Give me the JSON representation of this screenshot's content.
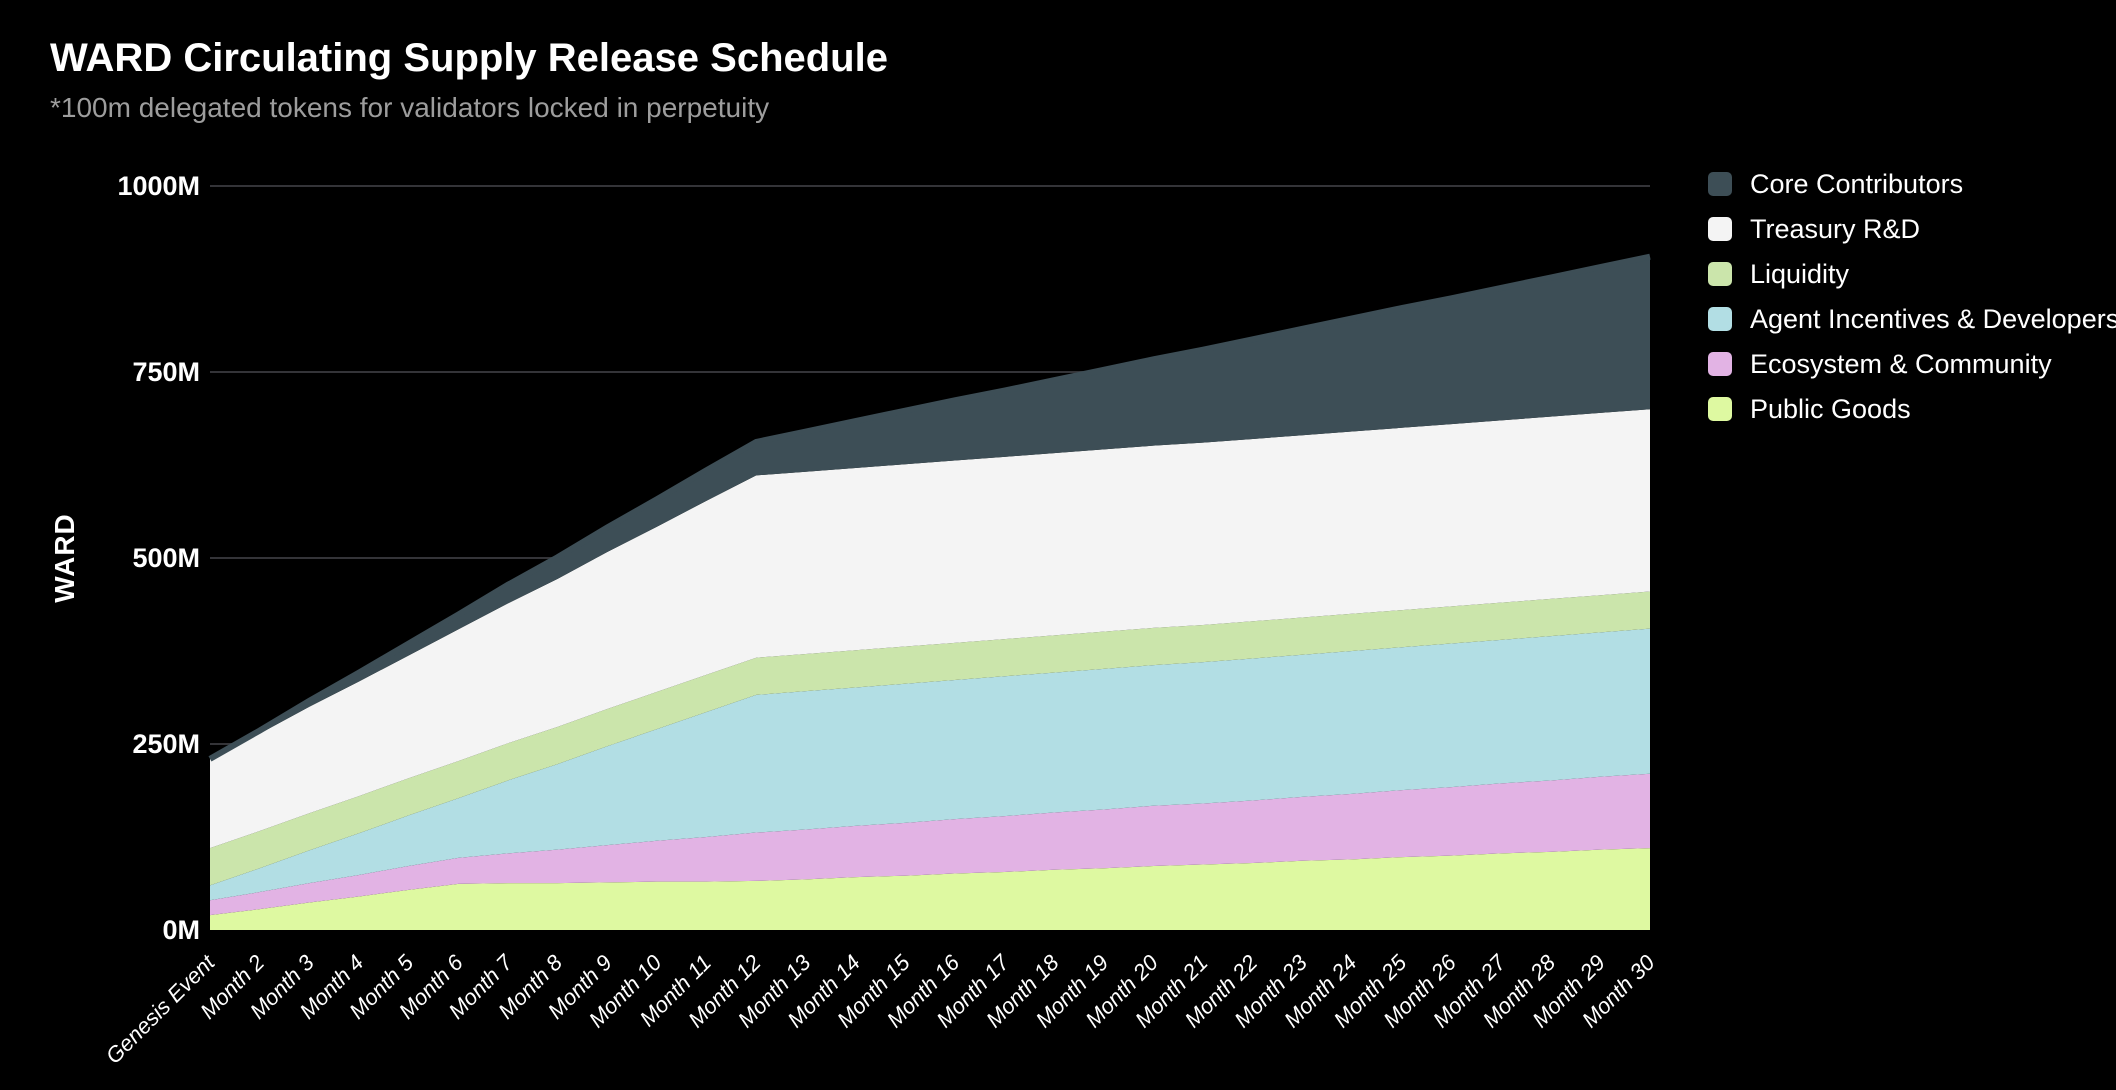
{
  "chart_data": {
    "type": "area",
    "stacked": true,
    "title": "WARD Circulating Supply Release Schedule",
    "subtitle": "*100m delegated tokens for validators locked in perpetuity",
    "ylabel": "WARD",
    "unit": "M",
    "ylim": [
      0,
      1000
    ],
    "background_color": "#000000",
    "grid_color": "#343438",
    "grid": "horizontal-only",
    "legend_position": "right",
    "y_ticks": [
      {
        "value": 0,
        "label": "0M"
      },
      {
        "value": 250,
        "label": "250M"
      },
      {
        "value": 500,
        "label": "500M"
      },
      {
        "value": 750,
        "label": "750M"
      },
      {
        "value": 1000,
        "label": "1000M"
      }
    ],
    "categories": [
      "Genesis Event",
      "Month 2",
      "Month 3",
      "Month 4",
      "Month 5",
      "Month 6",
      "Month 7",
      "Month 8",
      "Month 9",
      "Month 10",
      "Month 11",
      "Month 12",
      "Month 13",
      "Month 14",
      "Month 15",
      "Month 16",
      "Month 17",
      "Month 18",
      "Month 19",
      "Month 20",
      "Month 21",
      "Month 22",
      "Month 23",
      "Month 24",
      "Month 25",
      "Month 26",
      "Month 27",
      "Month 28",
      "Month 29",
      "Month 30"
    ],
    "series": [
      {
        "name": "Public Goods",
        "color": "#def9a1",
        "values": [
          20,
          28,
          37,
          45,
          54,
          62,
          63,
          63,
          64,
          65,
          65,
          66,
          68,
          71,
          73,
          76,
          78,
          81,
          83,
          86,
          88,
          90,
          93,
          95,
          98,
          100,
          103,
          105,
          108,
          110
        ]
      },
      {
        "name": "Ecosystem & Community",
        "color": "#e2b3e4",
        "values": [
          20,
          23,
          26,
          29,
          32,
          35,
          40,
          45,
          50,
          55,
          60,
          65,
          67,
          69,
          71,
          73,
          75,
          77,
          79,
          81,
          82,
          84,
          86,
          88,
          90,
          92,
          94,
          96,
          98,
          100
        ]
      },
      {
        "name": "Agent Incentives & Developers",
        "color": "#b2dee4",
        "values": [
          20,
          32,
          44,
          56,
          68,
          80,
          98,
          115,
          133,
          150,
          168,
          185,
          186,
          186,
          187,
          187,
          188,
          188,
          189,
          189,
          190,
          191,
          191,
          192,
          192,
          193,
          193,
          194,
          194,
          195
        ]
      },
      {
        "name": "Liquidity",
        "color": "#cbe5ab",
        "values": [
          50,
          50,
          50,
          50,
          50,
          50,
          50,
          50,
          50,
          50,
          50,
          50,
          50,
          50,
          50,
          50,
          50,
          50,
          50,
          50,
          50,
          50,
          50,
          50,
          50,
          50,
          50,
          50,
          50,
          50
        ]
      },
      {
        "name": "Treasury R&D",
        "color": "#f4f4f4",
        "values": [
          120,
          131,
          143,
          154,
          165,
          177,
          188,
          199,
          211,
          222,
          234,
          245,
          245,
          245,
          245,
          245,
          245,
          245,
          245,
          245,
          245,
          245,
          245,
          245,
          245,
          245,
          245,
          245,
          245,
          245
        ]
      },
      {
        "name": "Core Contributors",
        "color": "#3d4e56",
        "values": [
          0,
          4,
          8,
          12,
          16,
          20,
          25,
          29,
          33,
          37,
          41,
          45,
          54,
          63,
          72,
          81,
          89,
          98,
          107,
          116,
          125,
          134,
          143,
          152,
          161,
          169,
          178,
          187,
          196,
          205
        ]
      }
    ]
  }
}
